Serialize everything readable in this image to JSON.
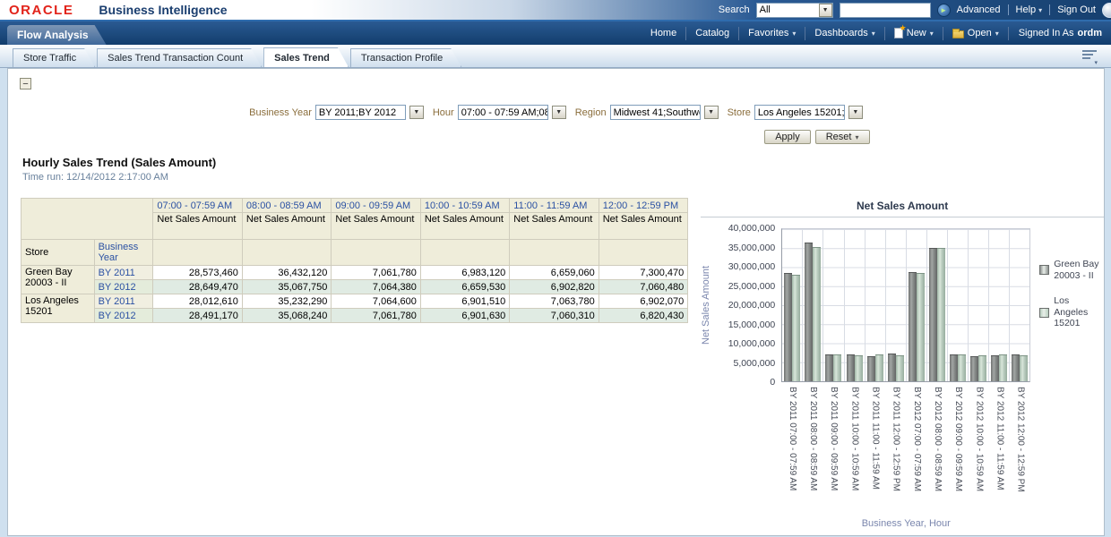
{
  "brand": {
    "logo": "ORACLE",
    "product": "Business Intelligence"
  },
  "icons": {
    "caret_down": "▾",
    "dropdown_arrow": "▼",
    "go_arrow": "►",
    "collapse": "−"
  },
  "global_header": {
    "search_label": "Search",
    "search_scope": "All",
    "search_value": "",
    "links": [
      {
        "label": "Advanced",
        "caret": false
      },
      {
        "label": "Help",
        "caret": true
      },
      {
        "label": "Sign Out",
        "caret": false
      }
    ]
  },
  "nav": {
    "items": [
      {
        "label": "Home",
        "caret": false
      },
      {
        "label": "Catalog",
        "caret": false
      },
      {
        "label": "Favorites",
        "caret": true
      },
      {
        "label": "Dashboards",
        "caret": true
      },
      {
        "label": "New",
        "caret": true,
        "icon": "new"
      },
      {
        "label": "Open",
        "caret": true,
        "icon": "open"
      }
    ],
    "signed_in_label": "Signed In As",
    "signed_in_user": "ordm"
  },
  "dashboard": {
    "title": "Flow Analysis",
    "tabs": [
      {
        "label": "Store Traffic",
        "active": false
      },
      {
        "label": "Sales Trend Transaction Count",
        "active": false
      },
      {
        "label": "Sales Trend",
        "active": true
      },
      {
        "label": "Transaction Profile",
        "active": false
      }
    ]
  },
  "filters": {
    "fields": [
      {
        "label": "Business Year",
        "value": "BY 2011;BY 2012"
      },
      {
        "label": "Hour",
        "value": "07:00 - 07:59 AM;08"
      },
      {
        "label": "Region",
        "value": "Midwest 41;Southwes"
      },
      {
        "label": "Store",
        "value": "Los Angeles 15201;G"
      }
    ],
    "apply_label": "Apply",
    "reset_label": "Reset"
  },
  "report": {
    "title": "Hourly Sales Trend (Sales Amount)",
    "time_run": "Time run: 12/14/2012 2:17:00 AM"
  },
  "table": {
    "time_columns": [
      "07:00 - 07:59 AM",
      "08:00 - 08:59 AM",
      "09:00 - 09:59 AM",
      "10:00 - 10:59 AM",
      "11:00 - 11:59 AM",
      "12:00 - 12:59 PM"
    ],
    "measure_label": "Net Sales Amount",
    "row_header_store": "Store",
    "row_header_year": "Business Year",
    "stores": [
      {
        "name": "Green Bay 20003 - II",
        "years": [
          {
            "year": "BY 2011",
            "values": [
              "28,573,460",
              "36,432,120",
              "7,061,780",
              "6,983,120",
              "6,659,060",
              "7,300,470"
            ]
          },
          {
            "year": "BY 2012",
            "values": [
              "28,649,470",
              "35,067,750",
              "7,064,380",
              "6,659,530",
              "6,902,820",
              "7,060,480"
            ]
          }
        ]
      },
      {
        "name": "Los Angeles 15201",
        "years": [
          {
            "year": "BY 2011",
            "values": [
              "28,012,610",
              "35,232,290",
              "7,064,600",
              "6,901,510",
              "7,063,780",
              "6,902,070"
            ]
          },
          {
            "year": "BY 2012",
            "values": [
              "28,491,170",
              "35,068,240",
              "7,061,780",
              "6,901,630",
              "7,060,310",
              "6,820,430"
            ]
          }
        ]
      }
    ]
  },
  "chart_data": {
    "type": "bar",
    "title": "Net Sales Amount",
    "ylabel": "Net Sales Amount",
    "xlabel": "Business Year, Hour",
    "ylim": [
      0,
      40000000
    ],
    "ytick_step": 5000000,
    "grid": true,
    "legend_position": "right",
    "categories": [
      "BY 2011 07:00 - 07:59 AM",
      "BY 2011 08:00 - 08:59 AM",
      "BY 2011 09:00 - 09:59 AM",
      "BY 2011 10:00 - 10:59 AM",
      "BY 2011 11:00 - 11:59 AM",
      "BY 2011 12:00 - 12:59 PM",
      "BY 2012 07:00 - 07:59 AM",
      "BY 2012 08:00 - 08:59 AM",
      "BY 2012 09:00 - 09:59 AM",
      "BY 2012 10:00 - 10:59 AM",
      "BY 2012 11:00 - 11:59 AM",
      "BY 2012 12:00 - 12:59 PM"
    ],
    "series": [
      {
        "name": "Green Bay 20003 - II",
        "color": "#8d9190",
        "values": [
          28573460,
          36432120,
          7061780,
          6983120,
          6659060,
          7300470,
          28649470,
          35067750,
          7064380,
          6659530,
          6902820,
          7060480
        ]
      },
      {
        "name": "Los Angeles 15201",
        "color": "#b9cfc0",
        "values": [
          28012610,
          35232290,
          7064600,
          6901510,
          7063780,
          6902070,
          28491170,
          35068240,
          7061780,
          6901630,
          7060310,
          6820430
        ]
      }
    ]
  }
}
